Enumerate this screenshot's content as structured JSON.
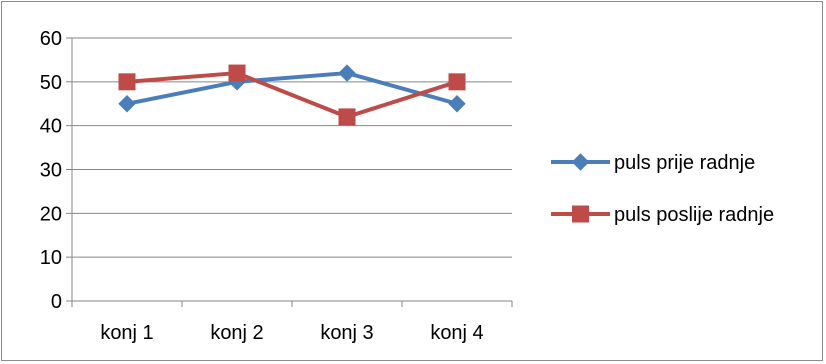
{
  "chart_data": {
    "type": "line",
    "categories": [
      "konj 1",
      "konj 2",
      "konj 3",
      "konj 4"
    ],
    "series": [
      {
        "name": "puls prije radnje",
        "values": [
          45,
          50,
          52,
          45
        ],
        "color": "#4a7ebb",
        "marker": "diamond"
      },
      {
        "name": "puls poslije radnje",
        "values": [
          50,
          52,
          42,
          50
        ],
        "color": "#be4b48",
        "marker": "square"
      }
    ],
    "title": "",
    "xlabel": "",
    "ylabel": "",
    "ylim": [
      0,
      60
    ],
    "yticks": [
      "0",
      "10",
      "20",
      "30",
      "40",
      "50",
      "60"
    ],
    "grid": true,
    "legend_position": "right"
  }
}
